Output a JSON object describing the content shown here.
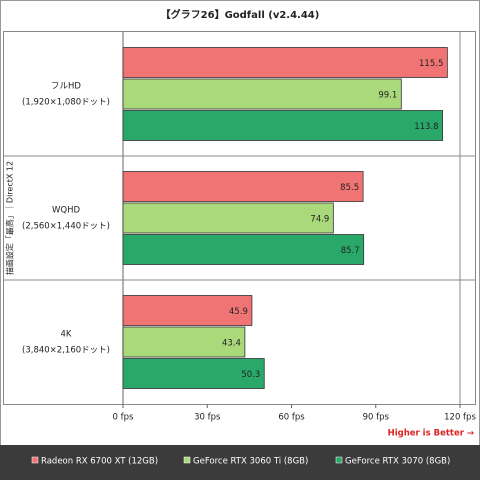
{
  "chart_data": {
    "type": "bar",
    "orientation": "horizontal",
    "title": "【グラフ26】Godfall (v2.4.44)",
    "y_label": "描画設定「最高」｜DirectX 12",
    "categories": [
      [
        "フルHD",
        "(1,920×1,080ドット)"
      ],
      [
        "WQHD",
        "(2,560×1,440ドット)"
      ],
      [
        "4K",
        "(3,840×2,160ドット)"
      ]
    ],
    "series": [
      {
        "name": "Radeon RX 6700 XT (12GB)",
        "color": "#f07474",
        "values": [
          115.5,
          85.5,
          45.9
        ]
      },
      {
        "name": "GeForce RTX 3060 Ti (8GB)",
        "color": "#a9d97a",
        "values": [
          99.1,
          74.9,
          43.4
        ]
      },
      {
        "name": "GeForce RTX 3070 (8GB)",
        "color": "#2aa86a",
        "values": [
          113.8,
          85.7,
          50.3
        ]
      }
    ],
    "xlim": [
      0,
      120
    ],
    "xticks": [
      {
        "value": 0,
        "label": "0 fps"
      },
      {
        "value": 30,
        "label": "30 fps"
      },
      {
        "value": 60,
        "label": "60 fps"
      },
      {
        "value": 90,
        "label": "90 fps"
      },
      {
        "value": 120,
        "label": "120 fps"
      }
    ],
    "annotation": "Higher is Better →",
    "grid": false
  }
}
